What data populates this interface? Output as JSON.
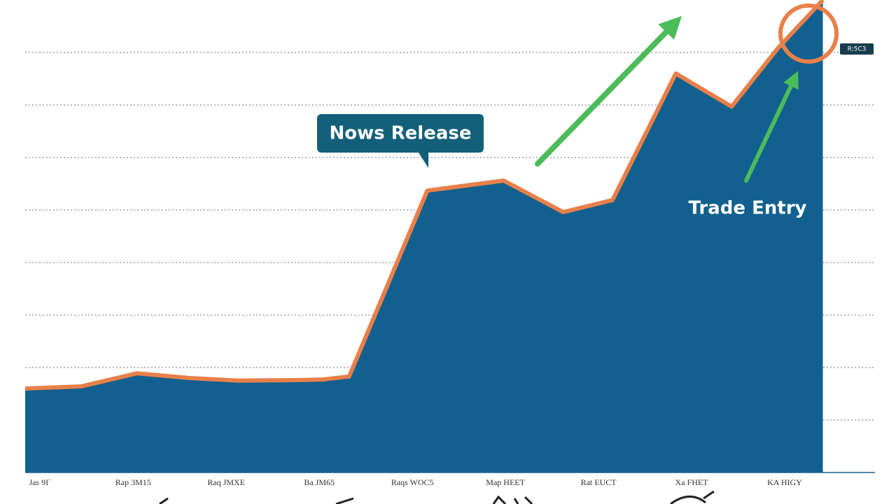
{
  "chart_data": {
    "type": "area",
    "x": [
      -0.16,
      0.44,
      1.04,
      1.6,
      2.13,
      2.73,
      3.03,
      3.32,
      4.16,
      4.98,
      5.62,
      6.15,
      6.83,
      7.43,
      7.92,
      8.41
    ],
    "values": [
      16,
      16.4,
      18.9,
      18,
      17.5,
      17.6,
      17.7,
      18.3,
      53.7,
      55.6,
      49.6,
      51.9,
      76,
      69.7,
      80.7,
      90
    ],
    "color": "#12608f",
    "line_color": "#e8804a",
    "xlim": [
      -0.16,
      8.97
    ],
    "ylim": [
      0,
      90
    ],
    "xticks": [
      {
        "value": 0,
        "label": "Jas 9I`"
      },
      {
        "value": 1,
        "label": "Rap 3M15"
      },
      {
        "value": 2,
        "label": "Raq JMXE"
      },
      {
        "value": 3,
        "label": "Ba JM65"
      },
      {
        "value": 4,
        "label": "Raqs WOC5"
      },
      {
        "value": 5,
        "label": "Map HEET"
      },
      {
        "value": 6,
        "label": "Rat EUCT"
      },
      {
        "value": 7,
        "label": "Xa FHET"
      },
      {
        "value": 8,
        "label": "KA HIGY"
      }
    ],
    "yticks": [
      10,
      20,
      30,
      40,
      50,
      60,
      70,
      80
    ],
    "grid": true,
    "annotations": [
      "Nows Release",
      "Trade Entry",
      "R:5C3"
    ]
  }
}
